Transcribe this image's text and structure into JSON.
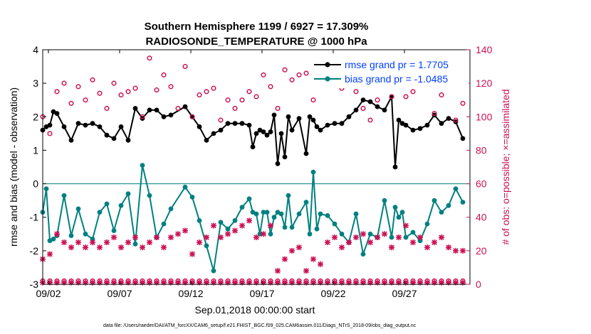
{
  "chart_data": {
    "type": "scatter",
    "title": "Southern Hemisphere 1199 / 6927 = 17.309%",
    "subtitle": "RADIOSONDE_TEMPERATURE @ 1000 hPa",
    "xlabel": "Sep.01,2018 00:00:00 start",
    "ylabel": "rmse and bias (model - observation)",
    "ylabel_right": "# of obs: o=possible; ×=assimilated",
    "xlim": [
      0.6,
      30.6
    ],
    "ylim": [
      -3,
      4
    ],
    "ylim_right": [
      0,
      140
    ],
    "x_ticks": [
      1,
      6,
      11,
      16,
      21,
      26
    ],
    "x_tick_labels": [
      "09/02",
      "09/07",
      "09/12",
      "09/17",
      "09/22",
      "09/27"
    ],
    "y_ticks": [
      -3,
      -2,
      -1,
      0,
      1,
      2,
      3,
      4
    ],
    "y_ticks_right": [
      0,
      20,
      40,
      60,
      80,
      100,
      120,
      140
    ],
    "zero_line": 0,
    "grid": false,
    "legend_position": "top-right",
    "legend": [
      {
        "label": "rmse grand pr = 1.7705",
        "color": "#000000",
        "text_color": "#0040ff"
      },
      {
        "label": "bias grand pr = -1.0485",
        "color": "#008080",
        "text_color": "#0040ff"
      }
    ],
    "colors": {
      "rmse": "#000000",
      "bias": "#008080",
      "obs": "#cc1155",
      "zero_line": "#008080",
      "right_axis": "#cc1155"
    },
    "series": [
      {
        "name": "rmse grand pr = 1.7705",
        "axis": "left",
        "color": "#000000",
        "x": [
          0.6,
          0.85,
          1.1,
          1.35,
          1.6,
          2.1,
          2.6,
          3.1,
          3.6,
          4.1,
          4.6,
          5.1,
          5.6,
          6.1,
          6.6,
          7.1,
          7.6,
          8.1,
          8.6,
          9.1,
          9.6,
          10.6,
          11.1,
          11.6,
          12.1,
          12.6,
          13.1,
          13.6,
          14.1,
          14.6,
          15.1,
          15.35,
          15.6,
          15.85,
          16.1,
          16.35,
          16.6,
          16.85,
          17.1,
          17.35,
          17.6,
          17.85,
          18.1,
          18.6,
          19.1,
          19.35,
          19.6,
          19.85,
          20.1,
          20.6,
          21.1,
          21.6,
          22.1,
          22.6,
          23.1,
          23.6,
          24.1,
          24.6,
          25.1,
          25.35,
          25.6,
          25.85,
          26.1,
          26.6,
          27.1,
          27.6,
          28.1,
          28.6,
          29.1,
          29.6,
          30.1
        ],
        "y": [
          1.6,
          1.7,
          1.75,
          2.15,
          2.1,
          1.7,
          1.3,
          1.8,
          1.75,
          1.8,
          1.7,
          1.45,
          1.35,
          1.7,
          1.3,
          2.25,
          1.95,
          2.2,
          2.2,
          2.0,
          2.05,
          2.3,
          2.0,
          1.7,
          1.3,
          1.5,
          1.6,
          1.8,
          1.8,
          1.8,
          1.75,
          1.1,
          1.5,
          1.6,
          1.55,
          1.45,
          1.55,
          2.05,
          0.6,
          1.5,
          0.8,
          2.0,
          1.6,
          1.95,
          0.9,
          2.0,
          1.9,
          1.7,
          1.6,
          1.75,
          1.8,
          1.8,
          2.0,
          2.2,
          2.5,
          2.45,
          2.3,
          2.2,
          2.6,
          0.5,
          1.9,
          1.8,
          1.75,
          1.6,
          1.65,
          1.75,
          2.05,
          1.8,
          1.95,
          1.85,
          1.35
        ]
      },
      {
        "name": "bias grand pr = -1.0485",
        "axis": "left",
        "color": "#008080",
        "x": [
          0.6,
          0.85,
          1.1,
          1.35,
          1.6,
          2.1,
          2.6,
          3.1,
          3.6,
          4.1,
          4.6,
          5.1,
          5.6,
          6.1,
          6.6,
          7.1,
          7.6,
          8.1,
          8.6,
          9.1,
          9.6,
          10.6,
          11.1,
          11.6,
          12.1,
          12.6,
          13.1,
          13.6,
          14.1,
          14.6,
          15.1,
          15.35,
          15.6,
          15.85,
          16.1,
          16.35,
          16.6,
          16.85,
          17.1,
          17.35,
          17.6,
          17.85,
          18.1,
          18.6,
          19.1,
          19.35,
          19.6,
          19.85,
          20.1,
          20.6,
          21.1,
          21.6,
          22.1,
          22.6,
          23.1,
          23.6,
          24.1,
          24.6,
          25.1,
          25.35,
          25.6,
          25.85,
          26.1,
          26.6,
          27.1,
          27.6,
          28.1,
          28.6,
          29.1,
          29.6,
          30.1
        ],
        "y": [
          -0.85,
          -0.15,
          -1.7,
          -1.65,
          -1.55,
          -0.35,
          -1.55,
          -0.75,
          -1.5,
          -1.65,
          -0.85,
          -0.6,
          -1.4,
          -0.65,
          -0.3,
          -1.8,
          0.55,
          -0.35,
          -1.6,
          -1.2,
          -0.75,
          -0.1,
          -0.4,
          -1.1,
          -1.85,
          -2.6,
          -1.15,
          -1.35,
          -1.1,
          -0.7,
          -0.45,
          -0.85,
          -0.9,
          -1.5,
          -0.85,
          -0.85,
          -1.5,
          -1.0,
          -0.85,
          -0.9,
          -1.3,
          -0.35,
          -1.3,
          -0.9,
          -0.55,
          -1.5,
          0.35,
          -1.35,
          -0.9,
          -0.95,
          -1.2,
          -1.5,
          -1.75,
          -0.9,
          -2.1,
          -1.5,
          -1.6,
          -0.5,
          -1.6,
          -0.7,
          -1.0,
          -0.85,
          -1.6,
          -1.45,
          -1.7,
          -1.2,
          -0.5,
          -0.85,
          -0.65,
          -0.15,
          -0.55
        ]
      },
      {
        "name": "",
        "axis": "right",
        "marker": "o",
        "color": "#cc1155",
        "x": [
          0.6,
          1.1,
          1.6,
          2.1,
          2.6,
          3.1,
          3.6,
          4.1,
          4.6,
          5.1,
          5.6,
          6.1,
          6.6,
          7.1,
          7.6,
          8.1,
          8.6,
          9.1,
          9.6,
          10.1,
          10.6,
          11.1,
          11.6,
          12.1,
          12.6,
          13.1,
          13.6,
          14.1,
          14.6,
          15.1,
          15.6,
          16.1,
          16.6,
          17.1,
          17.6,
          18.1,
          18.6,
          19.1,
          19.6,
          20.1,
          20.6,
          21.1,
          21.6,
          22.1,
          22.6,
          23.1,
          23.6,
          24.1,
          24.6,
          25.1,
          25.6,
          26.1,
          26.6,
          27.1,
          27.6,
          28.1,
          28.6,
          29.1,
          29.6,
          30.1
        ],
        "y": [
          100,
          90,
          115,
          120,
          108,
          118,
          110,
          122,
          114,
          105,
          120,
          113,
          115,
          117,
          100,
          135,
          116,
          125,
          118,
          105,
          130,
          100,
          113,
          115,
          117,
          98,
          110,
          105,
          110,
          115,
          112,
          125,
          118,
          105,
          128,
          122,
          125,
          126,
          110,
          125,
          123,
          120,
          117,
          120,
          115,
          105,
          98,
          110,
          120,
          112,
          130,
          112,
          115,
          120,
          122,
          102,
          113,
          130,
          98,
          108
        ]
      },
      {
        "name": "",
        "axis": "right",
        "marker": "×",
        "color": "#cc1155",
        "x": [
          0.6,
          1.1,
          1.6,
          2.1,
          2.6,
          3.1,
          3.6,
          4.1,
          4.6,
          5.1,
          5.6,
          6.1,
          6.6,
          7.1,
          7.6,
          8.1,
          8.6,
          9.1,
          9.6,
          10.1,
          10.6,
          11.1,
          11.6,
          12.1,
          12.6,
          13.1,
          13.6,
          14.1,
          14.6,
          15.1,
          15.6,
          16.1,
          16.6,
          17.1,
          17.6,
          18.1,
          18.6,
          19.1,
          19.6,
          20.1,
          20.6,
          21.1,
          21.6,
          22.1,
          22.6,
          23.1,
          23.6,
          24.1,
          24.6,
          25.1,
          25.6,
          26.1,
          26.6,
          27.1,
          27.6,
          28.1,
          28.6,
          29.1,
          29.6,
          30.1
        ],
        "y": [
          15,
          18,
          30,
          25,
          22,
          25,
          22,
          25,
          22,
          25,
          28,
          22,
          25,
          28,
          22,
          25,
          28,
          22,
          28,
          30,
          32,
          18,
          25,
          28,
          35,
          28,
          30,
          32,
          35,
          38,
          28,
          30,
          35,
          8,
          15,
          20,
          22,
          8,
          15,
          12,
          25,
          28,
          22,
          25,
          28,
          30,
          25,
          28,
          30,
          22,
          28,
          35,
          25,
          28,
          22,
          25,
          28,
          22,
          20,
          20
        ]
      },
      {
        "name": "",
        "axis": "right",
        "marker": "o",
        "color": "#cc1155",
        "x": [
          0.6,
          1.1,
          1.6,
          2.1,
          2.6,
          3.1,
          3.6,
          4.1,
          4.6,
          5.1,
          5.6,
          6.1,
          6.6,
          7.1,
          7.6,
          8.1,
          8.6,
          9.1,
          9.6,
          10.1,
          10.6,
          11.1,
          11.6,
          12.1,
          12.6,
          13.1,
          13.6,
          14.1,
          14.6,
          15.1,
          15.6,
          16.1,
          16.6,
          17.1,
          17.6,
          18.1,
          18.6,
          19.1,
          19.6,
          20.1,
          20.6,
          21.1,
          21.6,
          22.1,
          22.6,
          23.1,
          23.6,
          24.1,
          24.6,
          25.1,
          25.6,
          26.1,
          26.6,
          27.1,
          27.6,
          28.1,
          28.6,
          29.1,
          29.6,
          30.1
        ],
        "y": [
          2,
          2,
          2,
          2,
          2,
          2,
          2,
          2,
          2,
          2,
          2,
          2,
          2,
          2,
          2,
          2,
          2,
          2,
          2,
          2,
          2,
          2,
          2,
          2,
          2,
          2,
          2,
          2,
          2,
          2,
          2,
          2,
          2,
          2,
          2,
          2,
          2,
          2,
          2,
          2,
          2,
          2,
          2,
          2,
          2,
          2,
          2,
          2,
          2,
          2,
          2,
          2,
          2,
          2,
          2,
          2,
          2,
          2,
          2,
          2
        ]
      },
      {
        "name": "",
        "axis": "right",
        "marker": "×",
        "color": "#cc1155",
        "x": [
          0.6,
          1.1,
          1.6,
          2.1,
          2.6,
          3.1,
          3.6,
          4.1,
          4.6,
          5.1,
          5.6,
          6.1,
          6.6,
          7.1,
          7.6,
          8.1,
          8.6,
          9.1,
          9.6,
          10.1,
          10.6,
          11.1,
          11.6,
          12.1,
          12.6,
          13.1,
          13.6,
          14.1,
          14.6,
          15.1,
          15.6,
          16.1,
          16.6,
          17.1,
          17.6,
          18.1,
          18.6,
          19.1,
          19.6,
          20.1,
          20.6,
          21.1,
          21.6,
          22.1,
          22.6,
          23.1,
          23.6,
          24.1,
          24.6,
          25.1,
          25.6,
          26.1,
          26.6,
          27.1,
          27.6,
          28.1,
          28.6,
          29.1,
          29.6,
          30.1
        ],
        "y": [
          1,
          1,
          1,
          1,
          1,
          1,
          1,
          1,
          1,
          1,
          1,
          1,
          1,
          1,
          1,
          1,
          1,
          1,
          1,
          1,
          1,
          1,
          1,
          1,
          1,
          1,
          1,
          1,
          1,
          1,
          1,
          1,
          1,
          1,
          1,
          1,
          1,
          1,
          1,
          1,
          1,
          1,
          1,
          1,
          1,
          1,
          1,
          1,
          1,
          1,
          1,
          1,
          1,
          1,
          1,
          1,
          1,
          1,
          1,
          1
        ]
      }
    ],
    "footer": "data file: /Users/raeder/DAI/ATM_forcXX/CAM6_setup/f.e21.FHIST_BGC.f09_025.CAM6assim.011/Diags_NTrS_2018-09/obs_diag_output.nc"
  }
}
